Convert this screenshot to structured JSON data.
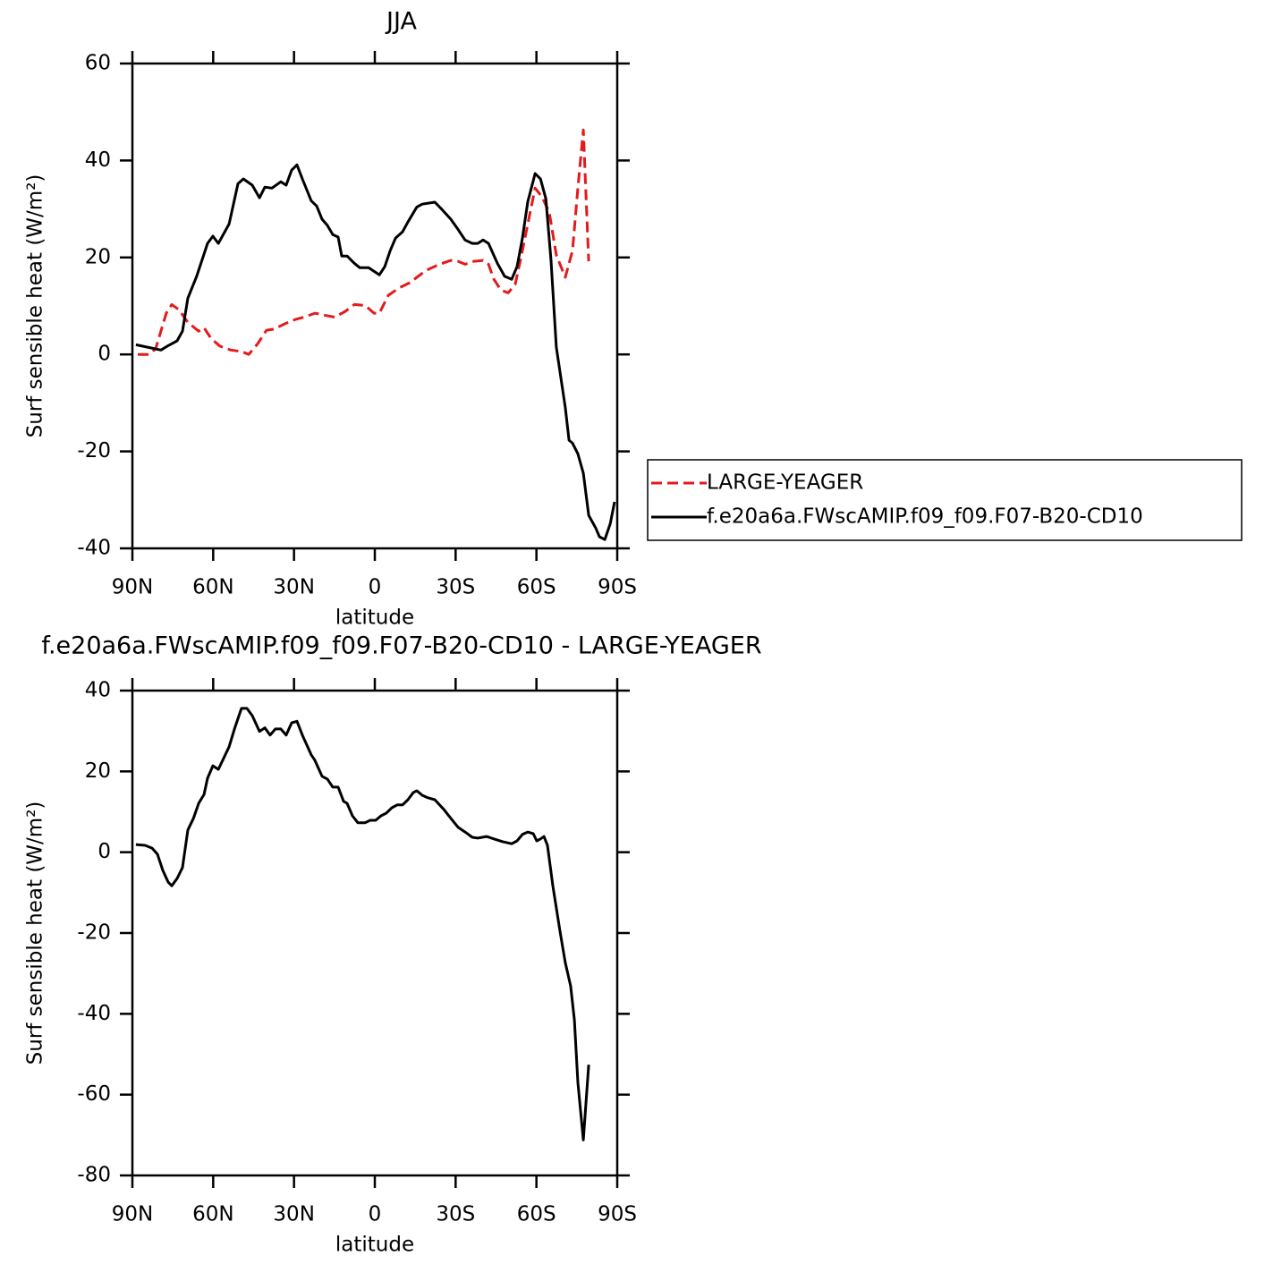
{
  "chart_data": [
    {
      "type": "line",
      "title": "JJA",
      "x_label": "latitude",
      "y_label": "Surf sensible heat (W/m²)",
      "xlim": [
        -90,
        90
      ],
      "xticks": [
        {
          "value": -90,
          "label": "90N"
        },
        {
          "value": -60,
          "label": "60N"
        },
        {
          "value": -30,
          "label": "30N"
        },
        0,
        {
          "value": 30,
          "label": "30S"
        },
        {
          "value": 60,
          "label": "60S"
        },
        {
          "value": 90,
          "label": "90S"
        }
      ],
      "ylim": [
        -40,
        60
      ],
      "yticks": [
        -40,
        -20,
        0,
        20,
        40,
        60
      ],
      "series": [
        {
          "name": "LARGE-YEAGER",
          "color": "#e41a1c",
          "dashed": true,
          "x": [
            -88.0,
            -84.0,
            -81.4,
            -79.4,
            -77.4,
            -75.4,
            -72.7,
            -69.4,
            -65.4,
            -63.4,
            -60.8,
            -57.5,
            -53.5,
            -49.5,
            -46.8,
            -43.5,
            -40.2,
            -37.5,
            -33.5,
            -29.6,
            -26.2,
            -22.2,
            -18.9,
            -14.9,
            -10.9,
            -7.6,
            -3.6,
            -0.3,
            1.7,
            5.0,
            9.0,
            13.0,
            15.6,
            19.0,
            23.6,
            28.2,
            30.9,
            33.5,
            36.8,
            40.2,
            42.2,
            44.2,
            46.8,
            49.5,
            52.1,
            54.8,
            57.5,
            59.5,
            62.1,
            64.8,
            67.4,
            70.7,
            73.4,
            75.4,
            77.4,
            79.4
          ],
          "values": [
            0,
            0,
            1.1,
            4.8,
            8.5,
            10.3,
            9.2,
            6.6,
            4.8,
            5.5,
            3.3,
            1.7,
            0.9,
            0.6,
            0,
            2.2,
            5.0,
            5.2,
            6.3,
            7.2,
            7.7,
            8.5,
            8.1,
            7.7,
            8.9,
            10.3,
            10.1,
            8.5,
            8.5,
            12.2,
            13.7,
            14.8,
            15.9,
            17.3,
            18.5,
            19.4,
            19.2,
            18.6,
            19.2,
            19.4,
            18.6,
            15.5,
            13.3,
            12.7,
            14.4,
            21.4,
            28.8,
            34.3,
            32.5,
            29.2,
            20.5,
            15.9,
            21.4,
            34.3,
            46.3,
            19.2
          ]
        },
        {
          "name": "f.e20a6a.FWscAMIP.f09_f09.F07-B20-CD10",
          "color": "#000000",
          "dashed": false,
          "x": [
            -88.7,
            -84.4,
            -79.4,
            -76.7,
            -73.4,
            -71.4,
            -69.4,
            -66.1,
            -62.1,
            -60.1,
            -58.1,
            -54.1,
            -50.8,
            -48.8,
            -45.5,
            -42.8,
            -40.8,
            -38.2,
            -34.9,
            -32.9,
            -30.9,
            -28.9,
            -26.9,
            -23.6,
            -21.6,
            -19.6,
            -17.6,
            -15.6,
            -13.6,
            -12.3,
            -10.3,
            -7.6,
            -5.6,
            -2.3,
            1.7,
            3.7,
            5.7,
            7.7,
            10.3,
            12.3,
            15.6,
            17.6,
            22.3,
            24.9,
            28.2,
            30.9,
            33.5,
            36.2,
            38.2,
            40.2,
            42.2,
            45.5,
            48.2,
            50.8,
            52.8,
            54.8,
            56.8,
            59.5,
            61.5,
            63.5,
            65.4,
            67.4,
            70.7,
            72.1,
            73.4,
            75.4,
            77.4,
            79.4,
            82.0,
            83.4,
            85.4,
            87.4,
            89.0
          ],
          "values": [
            2.0,
            1.5,
            0.9,
            1.8,
            2.8,
            4.8,
            11.6,
            16.2,
            22.9,
            24.4,
            22.9,
            26.9,
            35.2,
            36.2,
            34.9,
            32.3,
            34.5,
            34.3,
            35.6,
            34.9,
            38.0,
            39.1,
            36.2,
            31.7,
            30.6,
            27.9,
            26.6,
            24.7,
            24.2,
            20.3,
            20.3,
            18.8,
            17.9,
            17.9,
            16.4,
            18.1,
            21.4,
            24.0,
            25.3,
            27.3,
            30.4,
            31.0,
            31.4,
            29.9,
            27.9,
            25.8,
            23.6,
            22.9,
            22.9,
            23.6,
            22.9,
            18.8,
            16.1,
            15.5,
            18.1,
            24.0,
            31.5,
            37.3,
            36.2,
            32.1,
            19.6,
            1.5,
            -10.9,
            -17.7,
            -18.3,
            -20.5,
            -24.5,
            -33.2,
            -35.8,
            -37.6,
            -38.2,
            -34.9,
            -30.4
          ]
        }
      ]
    },
    {
      "type": "line",
      "title": "f.e20a6a.FWscAMIP.f09_f09.F07-B20-CD10 - LARGE-YEAGER",
      "x_label": "latitude",
      "y_label": "Surf sensible heat (W/m²)",
      "xlim": [
        -90,
        90
      ],
      "xticks": [
        {
          "value": -90,
          "label": "90N"
        },
        {
          "value": -60,
          "label": "60N"
        },
        {
          "value": -30,
          "label": "30N"
        },
        0,
        {
          "value": 30,
          "label": "30S"
        },
        {
          "value": 60,
          "label": "60S"
        },
        {
          "value": 90,
          "label": "90S"
        }
      ],
      "ylim": [
        -80,
        40
      ],
      "yticks": [
        -80,
        -60,
        -40,
        -20,
        0,
        20,
        40
      ],
      "series": [
        {
          "color": "#000000",
          "dashed": false,
          "x": [
            -88.7,
            -85.3,
            -82.7,
            -80.7,
            -78.7,
            -76.7,
            -75.4,
            -73.4,
            -71.4,
            -69.4,
            -67.4,
            -65.4,
            -63.4,
            -62.1,
            -60.1,
            -58.1,
            -54.1,
            -52.1,
            -49.5,
            -47.5,
            -45.5,
            -42.8,
            -40.8,
            -38.9,
            -36.9,
            -34.9,
            -32.9,
            -30.9,
            -28.9,
            -26.9,
            -23.6,
            -22.3,
            -19.6,
            -17.6,
            -15.6,
            -13.6,
            -11.6,
            -10.3,
            -8.3,
            -6.3,
            -3.6,
            -1.7,
            0.3,
            2.3,
            4.3,
            6.3,
            8.3,
            10.3,
            12.3,
            14.3,
            15.6,
            17.6,
            19.6,
            22.3,
            25.6,
            28.2,
            30.9,
            33.5,
            36.2,
            38.2,
            41.5,
            44.2,
            47.5,
            50.8,
            52.8,
            54.8,
            56.8,
            58.8,
            60.1,
            61.5,
            62.8,
            64.1,
            66.1,
            68.7,
            70.7,
            72.7,
            74.1,
            75.4,
            77.4,
            79.4
          ],
          "values": [
            1.9,
            1.7,
            1.0,
            -0.5,
            -4.5,
            -7.4,
            -8.3,
            -6.5,
            -3.8,
            5.5,
            8.3,
            12.1,
            14.3,
            18.3,
            21.4,
            20.5,
            26.1,
            30.5,
            35.6,
            35.6,
            33.8,
            29.9,
            30.8,
            29.0,
            30.5,
            30.5,
            29.0,
            32.0,
            32.4,
            29.0,
            24.1,
            22.8,
            18.8,
            18.1,
            16.1,
            16.1,
            12.6,
            12.1,
            9.0,
            7.3,
            7.3,
            7.9,
            7.9,
            9.0,
            9.7,
            11.0,
            11.7,
            11.7,
            13.0,
            14.8,
            15.2,
            14.1,
            13.5,
            13.0,
            10.6,
            8.4,
            6.2,
            5.0,
            3.7,
            3.5,
            3.9,
            3.3,
            2.6,
            2.1,
            2.8,
            4.4,
            5.0,
            4.6,
            2.8,
            3.3,
            3.9,
            1.7,
            -8.3,
            -19.4,
            -27.3,
            -33.1,
            -41.5,
            -57.0,
            -71.2,
            -52.6
          ]
        }
      ]
    }
  ]
}
